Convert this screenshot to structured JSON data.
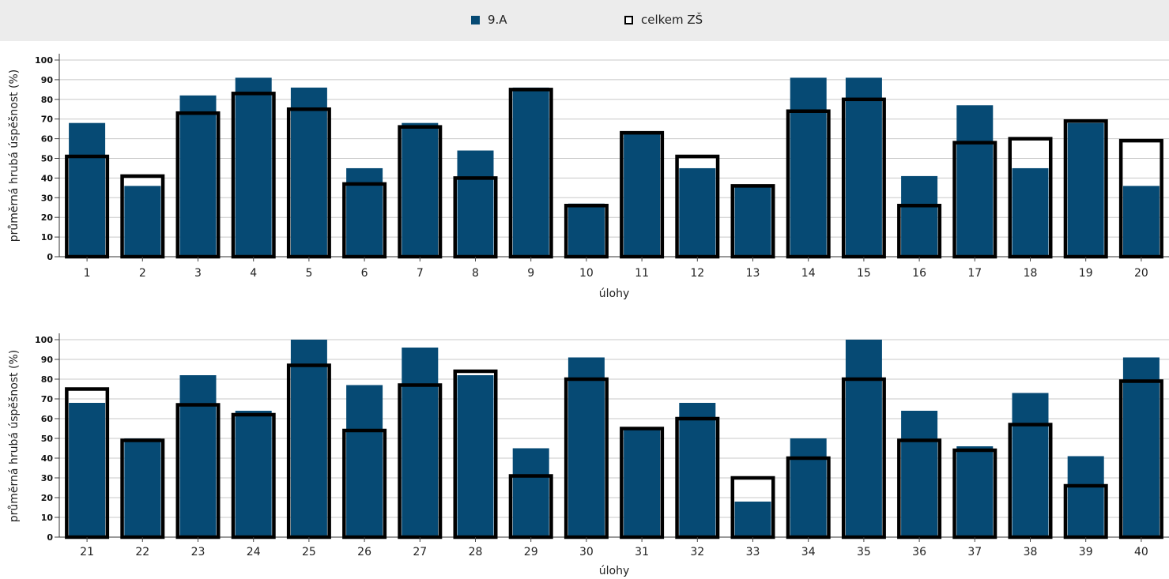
{
  "legend": {
    "series1_label": "9.A",
    "series2_label": "celkem ZŠ"
  },
  "colors": {
    "class_bar": "#064a74",
    "school_outline": "#000000",
    "grid": "#c8c8c8"
  },
  "chart_data": [
    {
      "type": "bar",
      "ylabel": "průměrná hrubá úspěšnost (%)",
      "xlabel": "úlohy",
      "ylim": [
        0,
        100
      ],
      "yticks": [
        0,
        10,
        20,
        30,
        40,
        50,
        60,
        70,
        80,
        90,
        100
      ],
      "grid": true,
      "legend_position": "top",
      "categories": [
        "1",
        "2",
        "3",
        "4",
        "5",
        "6",
        "7",
        "8",
        "9",
        "10",
        "11",
        "12",
        "13",
        "14",
        "15",
        "16",
        "17",
        "18",
        "19",
        "20"
      ],
      "series": [
        {
          "name": "9.A",
          "style": "filled",
          "values": [
            68,
            36,
            82,
            91,
            86,
            45,
            68,
            54,
            86,
            27,
            63,
            45,
            36,
            91,
            91,
            41,
            77,
            45,
            68,
            36
          ]
        },
        {
          "name": "celkem ZŠ",
          "style": "outline",
          "values": [
            51,
            41,
            73,
            83,
            75,
            37,
            66,
            40,
            85,
            26,
            63,
            51,
            36,
            74,
            80,
            26,
            58,
            60,
            69,
            59
          ]
        }
      ]
    },
    {
      "type": "bar",
      "ylabel": "průměrná hrubá úspěšnost (%)",
      "xlabel": "úlohy",
      "ylim": [
        0,
        100
      ],
      "yticks": [
        0,
        10,
        20,
        30,
        40,
        50,
        60,
        70,
        80,
        90,
        100
      ],
      "grid": true,
      "legend_position": "top",
      "categories": [
        "21",
        "22",
        "23",
        "24",
        "25",
        "26",
        "27",
        "28",
        "29",
        "30",
        "31",
        "32",
        "33",
        "34",
        "35",
        "36",
        "37",
        "38",
        "39",
        "40"
      ],
      "series": [
        {
          "name": "9.A",
          "style": "filled",
          "values": [
            68,
            50,
            82,
            64,
            100,
            77,
            96,
            82,
            45,
            91,
            55,
            68,
            18,
            50,
            100,
            64,
            46,
            73,
            41,
            91
          ]
        },
        {
          "name": "celkem ZŠ",
          "style": "outline",
          "values": [
            75,
            49,
            67,
            62,
            87,
            54,
            77,
            84,
            31,
            80,
            55,
            60,
            30,
            40,
            80,
            49,
            44,
            57,
            26,
            79
          ]
        }
      ]
    }
  ]
}
